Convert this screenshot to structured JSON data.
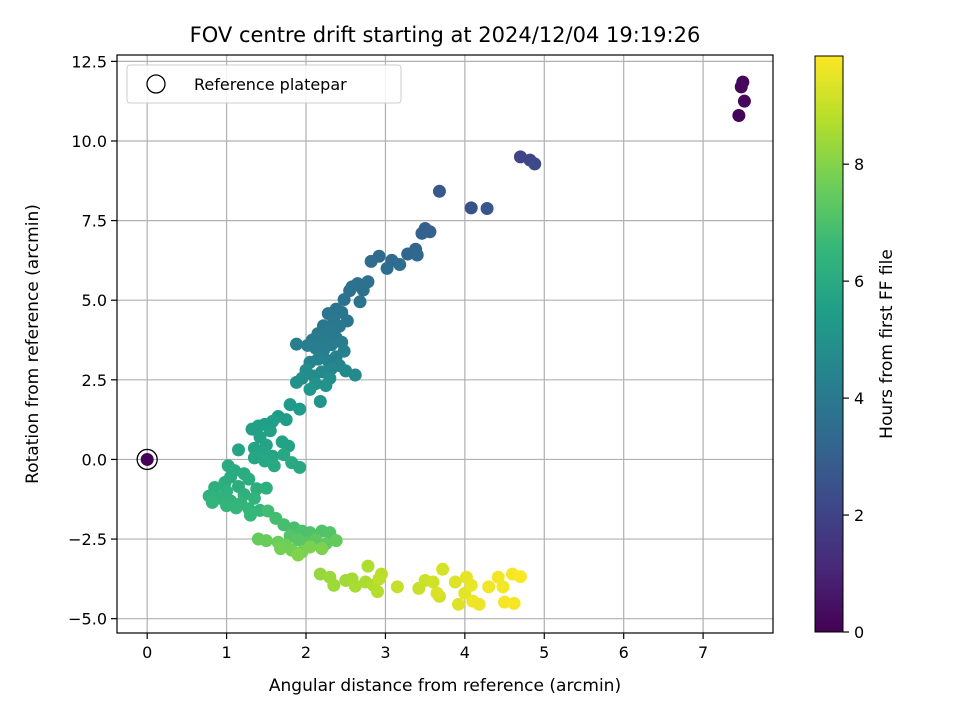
{
  "chart_data": {
    "type": "scatter",
    "title": "FOV centre drift starting at 2024/12/04 19:19:26",
    "xlabel": "Angular distance from reference (arcmin)",
    "ylabel": "Rotation from reference (arcmin)",
    "xlim": [
      -0.38,
      7.88
    ],
    "ylim": [
      -5.45,
      12.7
    ],
    "xticks": [
      0,
      1,
      2,
      3,
      4,
      5,
      6,
      7
    ],
    "yticks": [
      -5.0,
      -2.5,
      0.0,
      2.5,
      5.0,
      7.5,
      10.0,
      12.5
    ],
    "xtick_labels": [
      "0",
      "1",
      "2",
      "3",
      "4",
      "5",
      "6",
      "7"
    ],
    "ytick_labels": [
      "−5.0",
      "−2.5",
      "0.0",
      "2.5",
      "5.0",
      "7.5",
      "10.0",
      "12.5"
    ],
    "grid": true,
    "legend": {
      "position": "top-left",
      "entries": [
        "Reference platepar"
      ]
    },
    "colorbar": {
      "label": "Hours from first FF file",
      "range": [
        0,
        9.85
      ],
      "ticks": [
        0,
        2,
        4,
        6,
        8
      ],
      "tick_labels": [
        "0",
        "2",
        "4",
        "6",
        "8"
      ],
      "colormap": "viridis",
      "colors": [
        "#440154",
        "#482878",
        "#3e4989",
        "#31688e",
        "#26828e",
        "#1f9e89",
        "#35b779",
        "#6ece58",
        "#b5de2b",
        "#fde725"
      ]
    },
    "reference_point": {
      "x": 0,
      "y": 0,
      "t": 0.05
    },
    "points": [
      {
        "x": 7.45,
        "y": 10.8,
        "t": 0.1
      },
      {
        "x": 7.5,
        "y": 11.85,
        "t": 0.15
      },
      {
        "x": 7.48,
        "y": 11.7,
        "t": 0.2
      },
      {
        "x": 7.52,
        "y": 11.25,
        "t": 0.25
      },
      {
        "x": 4.7,
        "y": 9.5,
        "t": 2.0
      },
      {
        "x": 4.82,
        "y": 9.4,
        "t": 2.1
      },
      {
        "x": 4.88,
        "y": 9.28,
        "t": 2.2
      },
      {
        "x": 4.08,
        "y": 7.9,
        "t": 2.5
      },
      {
        "x": 4.28,
        "y": 7.88,
        "t": 2.6
      },
      {
        "x": 3.68,
        "y": 8.42,
        "t": 2.7
      },
      {
        "x": 3.5,
        "y": 7.25,
        "t": 3.0
      },
      {
        "x": 3.56,
        "y": 7.15,
        "t": 3.05
      },
      {
        "x": 3.46,
        "y": 7.1,
        "t": 3.1
      },
      {
        "x": 3.38,
        "y": 6.6,
        "t": 3.2
      },
      {
        "x": 3.28,
        "y": 6.45,
        "t": 3.25
      },
      {
        "x": 3.4,
        "y": 6.42,
        "t": 3.3
      },
      {
        "x": 3.08,
        "y": 6.25,
        "t": 3.35
      },
      {
        "x": 2.92,
        "y": 6.38,
        "t": 3.4
      },
      {
        "x": 2.82,
        "y": 6.22,
        "t": 3.45
      },
      {
        "x": 3.02,
        "y": 6.0,
        "t": 3.5
      },
      {
        "x": 3.18,
        "y": 6.12,
        "t": 3.55
      },
      {
        "x": 2.65,
        "y": 5.52,
        "t": 3.6
      },
      {
        "x": 2.55,
        "y": 5.3,
        "t": 3.62
      },
      {
        "x": 2.78,
        "y": 5.58,
        "t": 3.65
      },
      {
        "x": 2.72,
        "y": 5.32,
        "t": 3.68
      },
      {
        "x": 2.48,
        "y": 5.02,
        "t": 3.7
      },
      {
        "x": 2.58,
        "y": 5.42,
        "t": 3.72
      },
      {
        "x": 2.68,
        "y": 4.95,
        "t": 3.75
      },
      {
        "x": 2.38,
        "y": 4.72,
        "t": 3.8
      },
      {
        "x": 2.28,
        "y": 4.58,
        "t": 3.82
      },
      {
        "x": 2.45,
        "y": 4.62,
        "t": 3.85
      },
      {
        "x": 2.52,
        "y": 4.35,
        "t": 3.88
      },
      {
        "x": 2.35,
        "y": 4.4,
        "t": 3.9
      },
      {
        "x": 2.22,
        "y": 4.2,
        "t": 3.92
      },
      {
        "x": 2.42,
        "y": 4.18,
        "t": 3.95
      },
      {
        "x": 2.3,
        "y": 4.05,
        "t": 3.98
      },
      {
        "x": 2.15,
        "y": 3.95,
        "t": 4.0
      },
      {
        "x": 2.25,
        "y": 3.85,
        "t": 4.02
      },
      {
        "x": 2.38,
        "y": 3.82,
        "t": 4.05
      },
      {
        "x": 2.08,
        "y": 3.75,
        "t": 4.08
      },
      {
        "x": 2.18,
        "y": 3.65,
        "t": 4.1
      },
      {
        "x": 2.32,
        "y": 3.6,
        "t": 4.12
      },
      {
        "x": 2.45,
        "y": 3.68,
        "t": 4.15
      },
      {
        "x": 2.12,
        "y": 3.5,
        "t": 4.18
      },
      {
        "x": 2.02,
        "y": 3.58,
        "t": 4.2
      },
      {
        "x": 2.22,
        "y": 3.42,
        "t": 4.22
      },
      {
        "x": 1.88,
        "y": 3.62,
        "t": 4.25
      },
      {
        "x": 2.48,
        "y": 3.4,
        "t": 4.28
      },
      {
        "x": 2.38,
        "y": 3.22,
        "t": 4.3
      },
      {
        "x": 2.28,
        "y": 3.1,
        "t": 4.35
      },
      {
        "x": 2.15,
        "y": 3.15,
        "t": 4.4
      },
      {
        "x": 2.05,
        "y": 3.05,
        "t": 4.45
      },
      {
        "x": 2.42,
        "y": 2.95,
        "t": 4.5
      },
      {
        "x": 2.32,
        "y": 2.85,
        "t": 4.55
      },
      {
        "x": 2.2,
        "y": 2.75,
        "t": 4.6
      },
      {
        "x": 2.5,
        "y": 2.78,
        "t": 4.65
      },
      {
        "x": 2.62,
        "y": 2.65,
        "t": 4.7
      },
      {
        "x": 2.0,
        "y": 2.8,
        "t": 4.75
      },
      {
        "x": 2.1,
        "y": 2.62,
        "t": 4.8
      },
      {
        "x": 1.95,
        "y": 2.55,
        "t": 4.85
      },
      {
        "x": 2.3,
        "y": 2.55,
        "t": 4.9
      },
      {
        "x": 1.88,
        "y": 2.42,
        "t": 4.95
      },
      {
        "x": 2.12,
        "y": 2.38,
        "t": 5.0
      },
      {
        "x": 2.25,
        "y": 2.32,
        "t": 5.05
      },
      {
        "x": 2.18,
        "y": 1.82,
        "t": 5.1
      },
      {
        "x": 2.05,
        "y": 2.2,
        "t": 5.15
      },
      {
        "x": 1.8,
        "y": 1.72,
        "t": 5.3
      },
      {
        "x": 1.92,
        "y": 1.58,
        "t": 5.35
      },
      {
        "x": 1.65,
        "y": 1.35,
        "t": 5.4
      },
      {
        "x": 1.75,
        "y": 1.25,
        "t": 5.45
      },
      {
        "x": 1.58,
        "y": 1.2,
        "t": 5.5
      },
      {
        "x": 1.48,
        "y": 1.1,
        "t": 5.52
      },
      {
        "x": 1.4,
        "y": 1.05,
        "t": 5.55
      },
      {
        "x": 1.32,
        "y": 0.95,
        "t": 5.58
      },
      {
        "x": 1.55,
        "y": 0.9,
        "t": 5.6
      },
      {
        "x": 1.42,
        "y": 0.7,
        "t": 5.62
      },
      {
        "x": 1.7,
        "y": 0.55,
        "t": 5.65
      },
      {
        "x": 1.78,
        "y": 0.42,
        "t": 5.68
      },
      {
        "x": 1.5,
        "y": 0.45,
        "t": 5.7
      },
      {
        "x": 1.35,
        "y": 0.35,
        "t": 5.72
      },
      {
        "x": 1.15,
        "y": 0.3,
        "t": 5.75
      },
      {
        "x": 1.45,
        "y": 0.2,
        "t": 5.78
      },
      {
        "x": 1.58,
        "y": 0.1,
        "t": 5.8
      },
      {
        "x": 1.35,
        "y": 0.05,
        "t": 5.82
      },
      {
        "x": 1.48,
        "y": -0.05,
        "t": 5.85
      },
      {
        "x": 1.72,
        "y": 0.15,
        "t": 5.88
      },
      {
        "x": 1.82,
        "y": -0.1,
        "t": 5.9
      },
      {
        "x": 1.92,
        "y": -0.25,
        "t": 5.92
      },
      {
        "x": 1.6,
        "y": -0.2,
        "t": 5.95
      },
      {
        "x": 1.02,
        "y": -0.2,
        "t": 6.0
      },
      {
        "x": 1.1,
        "y": -0.35,
        "t": 6.02
      },
      {
        "x": 1.22,
        "y": -0.45,
        "t": 6.05
      },
      {
        "x": 1.05,
        "y": -0.55,
        "t": 6.08
      },
      {
        "x": 1.28,
        "y": -0.62,
        "t": 6.1
      },
      {
        "x": 0.98,
        "y": -0.72,
        "t": 6.12
      },
      {
        "x": 1.15,
        "y": -0.85,
        "t": 6.15
      },
      {
        "x": 1.38,
        "y": -0.92,
        "t": 6.18
      },
      {
        "x": 1.5,
        "y": -0.9,
        "t": 6.2
      },
      {
        "x": 0.85,
        "y": -0.88,
        "t": 6.22
      },
      {
        "x": 1.0,
        "y": -1.0,
        "t": 6.25
      },
      {
        "x": 1.22,
        "y": -1.1,
        "t": 6.28
      },
      {
        "x": 0.78,
        "y": -1.15,
        "t": 6.3
      },
      {
        "x": 0.92,
        "y": -1.22,
        "t": 6.32
      },
      {
        "x": 1.05,
        "y": -1.3,
        "t": 6.35
      },
      {
        "x": 1.35,
        "y": -1.22,
        "t": 6.38
      },
      {
        "x": 1.18,
        "y": -1.38,
        "t": 6.4
      },
      {
        "x": 0.82,
        "y": -1.35,
        "t": 6.42
      },
      {
        "x": 1.0,
        "y": -1.45,
        "t": 6.45
      },
      {
        "x": 1.28,
        "y": -1.55,
        "t": 6.48
      },
      {
        "x": 1.12,
        "y": -1.52,
        "t": 6.5
      },
      {
        "x": 1.42,
        "y": -1.6,
        "t": 6.52
      },
      {
        "x": 1.3,
        "y": -1.75,
        "t": 6.55
      },
      {
        "x": 1.52,
        "y": -1.62,
        "t": 6.8
      },
      {
        "x": 1.62,
        "y": -1.85,
        "t": 6.85
      },
      {
        "x": 1.72,
        "y": -2.05,
        "t": 6.9
      },
      {
        "x": 1.85,
        "y": -2.15,
        "t": 6.95
      },
      {
        "x": 1.95,
        "y": -2.25,
        "t": 7.0
      },
      {
        "x": 2.05,
        "y": -2.3,
        "t": 7.05
      },
      {
        "x": 2.2,
        "y": -2.25,
        "t": 7.1
      },
      {
        "x": 2.3,
        "y": -2.3,
        "t": 7.15
      },
      {
        "x": 1.8,
        "y": -2.4,
        "t": 7.2
      },
      {
        "x": 1.9,
        "y": -2.52,
        "t": 7.25
      },
      {
        "x": 2.0,
        "y": -2.62,
        "t": 7.3
      },
      {
        "x": 2.12,
        "y": -2.52,
        "t": 7.35
      },
      {
        "x": 2.25,
        "y": -2.65,
        "t": 7.4
      },
      {
        "x": 2.38,
        "y": -2.55,
        "t": 7.45
      },
      {
        "x": 1.4,
        "y": -2.5,
        "t": 7.5
      },
      {
        "x": 1.5,
        "y": -2.55,
        "t": 7.55
      },
      {
        "x": 1.65,
        "y": -2.6,
        "t": 7.6
      },
      {
        "x": 1.75,
        "y": -2.7,
        "t": 7.65
      },
      {
        "x": 1.82,
        "y": -2.85,
        "t": 7.7
      },
      {
        "x": 1.68,
        "y": -2.8,
        "t": 7.75
      },
      {
        "x": 1.95,
        "y": -2.9,
        "t": 7.8
      },
      {
        "x": 2.05,
        "y": -2.75,
        "t": 7.85
      },
      {
        "x": 2.2,
        "y": -2.8,
        "t": 7.9
      },
      {
        "x": 1.9,
        "y": -3.0,
        "t": 7.95
      },
      {
        "x": 2.18,
        "y": -3.6,
        "t": 8.3
      },
      {
        "x": 2.3,
        "y": -3.7,
        "t": 8.35
      },
      {
        "x": 2.35,
        "y": -3.95,
        "t": 8.4
      },
      {
        "x": 2.5,
        "y": -3.8,
        "t": 8.45
      },
      {
        "x": 2.58,
        "y": -3.75,
        "t": 8.5
      },
      {
        "x": 2.62,
        "y": -3.98,
        "t": 8.55
      },
      {
        "x": 2.75,
        "y": -3.85,
        "t": 8.6
      },
      {
        "x": 2.78,
        "y": -3.35,
        "t": 8.65
      },
      {
        "x": 2.85,
        "y": -3.95,
        "t": 8.7
      },
      {
        "x": 2.9,
        "y": -4.15,
        "t": 8.75
      },
      {
        "x": 2.95,
        "y": -3.6,
        "t": 8.8
      },
      {
        "x": 2.92,
        "y": -3.75,
        "t": 8.85
      },
      {
        "x": 3.15,
        "y": -4.0,
        "t": 9.0
      },
      {
        "x": 3.42,
        "y": -4.05,
        "t": 9.05
      },
      {
        "x": 3.5,
        "y": -3.8,
        "t": 9.1
      },
      {
        "x": 3.6,
        "y": -3.85,
        "t": 9.15
      },
      {
        "x": 3.68,
        "y": -4.3,
        "t": 9.2
      },
      {
        "x": 3.72,
        "y": -3.45,
        "t": 9.25
      },
      {
        "x": 3.65,
        "y": -4.2,
        "t": 9.3
      },
      {
        "x": 3.88,
        "y": -3.85,
        "t": 9.35
      },
      {
        "x": 3.92,
        "y": -4.55,
        "t": 9.4
      },
      {
        "x": 4.0,
        "y": -4.2,
        "t": 9.45
      },
      {
        "x": 4.02,
        "y": -3.7,
        "t": 9.5
      },
      {
        "x": 4.08,
        "y": -3.95,
        "t": 9.55
      },
      {
        "x": 4.1,
        "y": -4.45,
        "t": 9.6
      },
      {
        "x": 4.18,
        "y": -4.55,
        "t": 9.62
      },
      {
        "x": 4.3,
        "y": -4.0,
        "t": 9.65
      },
      {
        "x": 4.42,
        "y": -3.7,
        "t": 9.68
      },
      {
        "x": 4.48,
        "y": -4.0,
        "t": 9.7
      },
      {
        "x": 4.5,
        "y": -4.48,
        "t": 9.72
      },
      {
        "x": 4.6,
        "y": -3.6,
        "t": 9.75
      },
      {
        "x": 4.62,
        "y": -4.52,
        "t": 9.78
      },
      {
        "x": 4.7,
        "y": -3.68,
        "t": 9.8
      }
    ]
  }
}
